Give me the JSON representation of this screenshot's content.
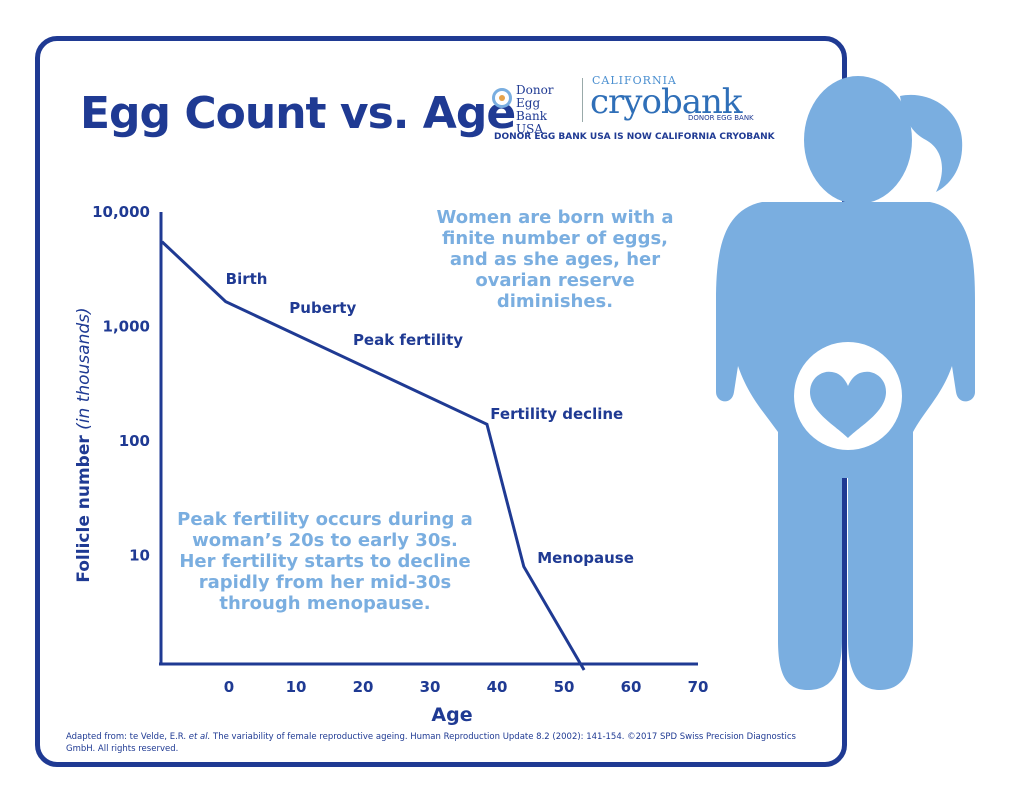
{
  "title": "Egg Count vs. Age",
  "logo": {
    "left_brand": "Donor Egg Bank USA",
    "right_brand_top": "CALIFORNIA",
    "right_brand_main": "cryobank",
    "right_brand_sub": "DONOR EGG BANK",
    "tagline": "DONOR EGG BANK USA IS NOW CALIFORNIA CRYOBANK"
  },
  "chart_data": {
    "type": "line",
    "xlabel": "Age",
    "ylabel": "Follicle number",
    "ylabel_suffix": "(in thousands)",
    "y_scale": "log",
    "x_ticks": [
      0,
      10,
      20,
      30,
      40,
      50,
      60,
      70
    ],
    "y_ticks": [
      {
        "value": 10,
        "label": "10"
      },
      {
        "value": 100,
        "label": "100"
      },
      {
        "value": 1000,
        "label": "1,000"
      },
      {
        "value": 10000,
        "label": "10,000"
      }
    ],
    "xlim": [
      -10,
      70
    ],
    "ylim": [
      1,
      10000
    ],
    "grid": false,
    "series": [
      {
        "x": [
          -10,
          -0.5,
          38.5,
          44,
          53
        ],
        "y": [
          5500,
          1650,
          140,
          8,
          1
        ]
      }
    ],
    "annotations": [
      {
        "text": "Birth",
        "x": -0.5,
        "y": 2600
      },
      {
        "text": "Puberty",
        "x": 9,
        "y": 1450
      },
      {
        "text": "Peak fertility",
        "x": 18.5,
        "y": 760
      },
      {
        "text": "Fertility decline",
        "x": 39,
        "y": 172
      },
      {
        "text": "Menopause",
        "x": 46,
        "y": 9.5
      }
    ]
  },
  "notes": {
    "top": "Women are born with a finite number of eggs, and as she ages, her ovarian reserve diminishes.",
    "bottom": "Peak fertility occurs during a woman’s 20s to early 30s. Her fertility starts to decline rapidly from her mid-30s through menopause."
  },
  "footer": {
    "prefix": "Adapted from: te Velde, E.R. ",
    "etal": "et al.",
    "rest": " The variability of female reproductive ageing.  Human Reproduction Update 8.2 (2002): 141-154.  ©2017 SPD Swiss Precision Diagnostics GmbH. All rights reserved."
  },
  "colors": {
    "navy": "#1f3a93",
    "light_blue": "#7aaee0"
  }
}
